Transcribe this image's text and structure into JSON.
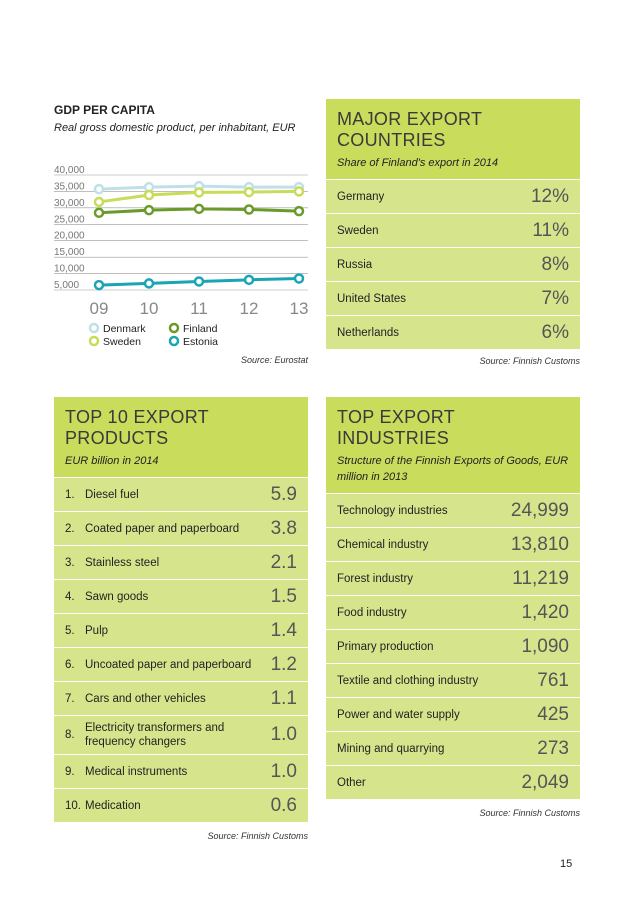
{
  "gdp": {
    "title": "GDP PER CAPITA",
    "subtitle": "Real gross domestic product, per inhabitant, EUR",
    "source": "Source: Eurostat"
  },
  "chart_data": {
    "type": "line",
    "categories": [
      "09",
      "10",
      "11",
      "12",
      "13"
    ],
    "series": [
      {
        "name": "Denmark",
        "color": "#bfe0e8",
        "values": [
          35700,
          36300,
          36600,
          36300,
          36300
        ]
      },
      {
        "name": "Sweden",
        "color": "#c8dc5a",
        "values": [
          31800,
          33900,
          34700,
          34800,
          35000
        ]
      },
      {
        "name": "Finland",
        "color": "#6a9a2a",
        "values": [
          28500,
          29300,
          29700,
          29500,
          29000
        ]
      },
      {
        "name": "Estonia",
        "color": "#1aa5b5",
        "values": [
          6500,
          7000,
          7600,
          8100,
          8500
        ]
      }
    ],
    "ylim": [
      5000,
      40000
    ],
    "yticks": [
      {
        "value": 5000,
        "label": "5,000"
      },
      {
        "value": 10000,
        "label": "10,000"
      },
      {
        "value": 15000,
        "label": "15,000"
      },
      {
        "value": 20000,
        "label": "20,000"
      },
      {
        "value": 25000,
        "label": "25,000"
      },
      {
        "value": 30000,
        "label": "30,000"
      },
      {
        "value": 35000,
        "label": "35,000"
      },
      {
        "value": 40000,
        "label": "40,000"
      }
    ],
    "grid": true
  },
  "countries": {
    "title": "MAJOR EXPORT COUNTRIES",
    "subtitle": "Share of Finland's export in 2014",
    "source": "Source: Finnish Customs",
    "rows": [
      [
        "Germany",
        "12%"
      ],
      [
        "Sweden",
        "11%"
      ],
      [
        "Russia",
        "8%"
      ],
      [
        "United States",
        "7%"
      ],
      [
        "Netherlands",
        "6%"
      ]
    ]
  },
  "products": {
    "title": "TOP 10 EXPORT PRODUCTS",
    "subtitle": "EUR billion in 2014",
    "source": "Source: Finnish Customs",
    "rows": [
      [
        "1.",
        "Diesel fuel",
        "5.9"
      ],
      [
        "2.",
        "Coated paper and paperboard",
        "3.8"
      ],
      [
        "3.",
        "Stainless steel",
        "2.1"
      ],
      [
        "4.",
        "Sawn goods",
        "1.5"
      ],
      [
        "5.",
        "Pulp",
        "1.4"
      ],
      [
        "6.",
        "Uncoated paper and paperboard",
        "1.2"
      ],
      [
        "7.",
        "Cars and other vehicles",
        "1.1"
      ],
      [
        "8.",
        "Electricity transformers and frequency changers",
        "1.0"
      ],
      [
        "9.",
        "Medical instruments",
        "1.0"
      ],
      [
        "10.",
        "Medication",
        "0.6"
      ]
    ]
  },
  "industries": {
    "title": "TOP EXPORT INDUSTRIES",
    "subtitle": "Structure of the Finnish Exports of Goods, EUR million in 2013",
    "source": "Source: Finnish Customs",
    "rows": [
      [
        "Technology industries",
        "24,999"
      ],
      [
        "Chemical industry",
        "13,810"
      ],
      [
        "Forest industry",
        "11,219"
      ],
      [
        "Food industry",
        "1,420"
      ],
      [
        "Primary production",
        "1,090"
      ],
      [
        "Textile and clothing industry",
        "761"
      ],
      [
        "Power and water supply",
        "425"
      ],
      [
        "Mining and quarrying",
        "273"
      ],
      [
        "Other",
        "2,049"
      ]
    ]
  },
  "page_number": "15"
}
